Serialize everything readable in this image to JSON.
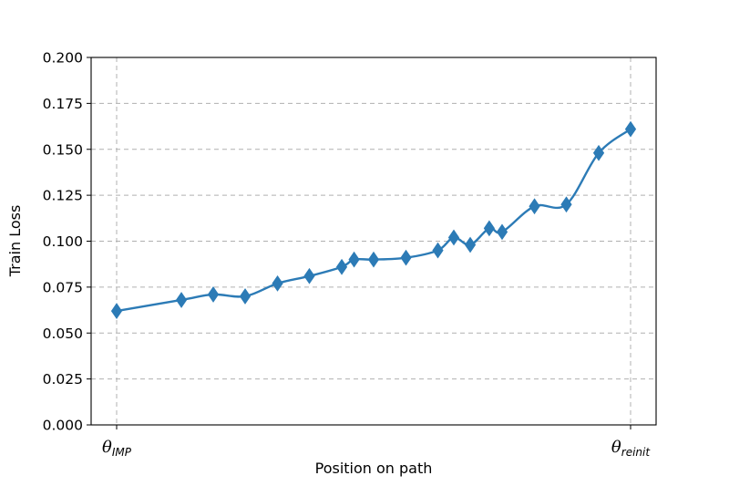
{
  "chart_data": {
    "type": "line",
    "title": "",
    "xlabel": "Position on path",
    "ylabel": "Train Loss",
    "xlim": [
      0,
      1
    ],
    "ylim": [
      0,
      0.2
    ],
    "yticks": [
      "0.000",
      "0.025",
      "0.050",
      "0.075",
      "0.100",
      "0.125",
      "0.150",
      "0.175",
      "0.200"
    ],
    "ytick_values": [
      0,
      0.025,
      0.05,
      0.075,
      0.1,
      0.125,
      0.15,
      0.175,
      0.2
    ],
    "xticks": [
      {
        "value": 0,
        "main": "θ",
        "sub": "IMP"
      },
      {
        "value": 1,
        "main": "θ",
        "sub": "reinit"
      }
    ],
    "grid": true,
    "color": "#2c7bb6",
    "marker": "diamond",
    "series": [
      {
        "x": [
          0.0,
          0.126,
          0.188,
          0.25,
          0.313,
          0.375,
          0.438,
          0.462,
          0.5,
          0.563,
          0.625,
          0.656,
          0.688,
          0.725,
          0.75,
          0.813,
          0.875,
          0.938,
          1.0
        ],
        "values": [
          0.062,
          0.068,
          0.071,
          0.07,
          0.077,
          0.081,
          0.086,
          0.09,
          0.09,
          0.091,
          0.095,
          0.102,
          0.098,
          0.107,
          0.105,
          0.119,
          0.12,
          0.148,
          0.161
        ]
      }
    ]
  }
}
